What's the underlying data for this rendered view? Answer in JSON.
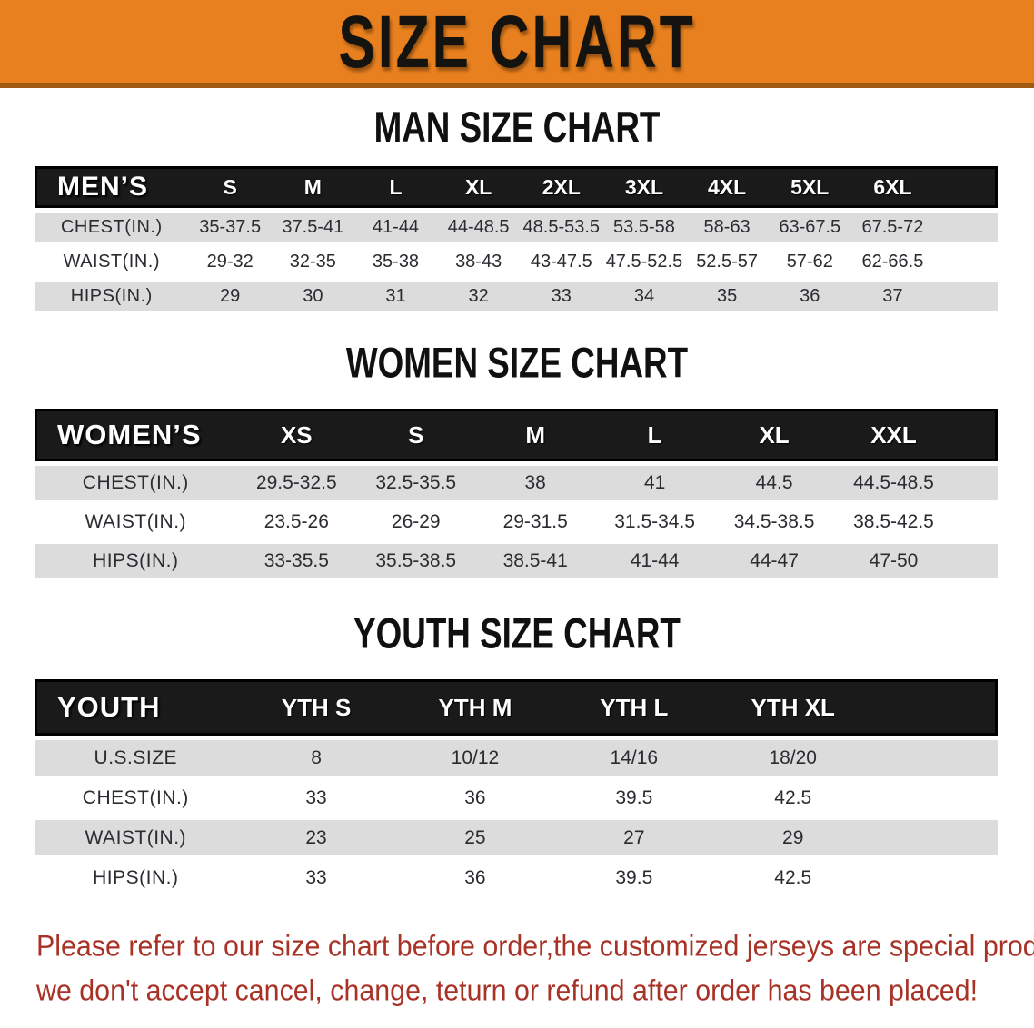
{
  "banner": {
    "title": "SIZE CHART"
  },
  "sections": [
    {
      "heading": "MAN SIZE CHART",
      "table": {
        "header_label": "MEN’S",
        "columns": [
          "S",
          "M",
          "L",
          "XL",
          "2XL",
          "3XL",
          "4XL",
          "5XL",
          "6XL"
        ],
        "rows": [
          {
            "label": "CHEST(IN.)",
            "values": [
              "35-37.5",
              "37.5-41",
              "41-44",
              "44-48.5",
              "48.5-53.5",
              "53.5-58",
              "58-63",
              "63-67.5",
              "67.5-72"
            ]
          },
          {
            "label": "WAIST(IN.)",
            "values": [
              "29-32",
              "32-35",
              "35-38",
              "38-43",
              "43-47.5",
              "47.5-52.5",
              "52.5-57",
              "57-62",
              "62-66.5"
            ]
          },
          {
            "label": "HIPS(IN.)",
            "values": [
              "29",
              "30",
              "31",
              "32",
              "33",
              "34",
              "35",
              "36",
              "37"
            ]
          }
        ]
      }
    },
    {
      "heading": "WOMEN SIZE CHART",
      "table": {
        "header_label": "WOMEN’S",
        "columns": [
          "XS",
          "S",
          "M",
          "L",
          "XL",
          "XXL"
        ],
        "rows": [
          {
            "label": "CHEST(IN.)",
            "values": [
              "29.5-32.5",
              "32.5-35.5",
              "38",
              "41",
              "44.5",
              "44.5-48.5"
            ]
          },
          {
            "label": "WAIST(IN.)",
            "values": [
              "23.5-26",
              "26-29",
              "29-31.5",
              "31.5-34.5",
              "34.5-38.5",
              "38.5-42.5"
            ]
          },
          {
            "label": "HIPS(IN.)",
            "values": [
              "33-35.5",
              "35.5-38.5",
              "38.5-41",
              "41-44",
              "44-47",
              "47-50"
            ]
          }
        ]
      }
    },
    {
      "heading": "YOUTH SIZE CHART",
      "table": {
        "header_label": "YOUTH",
        "columns": [
          "YTH S",
          "YTH M",
          "YTH L",
          "YTH XL"
        ],
        "rows": [
          {
            "label": "U.S.SIZE",
            "values": [
              "8",
              "10/12",
              "14/16",
              "18/20"
            ]
          },
          {
            "label": "CHEST(IN.)",
            "values": [
              "33",
              "36",
              "39.5",
              "42.5"
            ]
          },
          {
            "label": "WAIST(IN.)",
            "values": [
              "23",
              "25",
              "27",
              "29"
            ]
          },
          {
            "label": "HIPS(IN.)",
            "values": [
              "33",
              "36",
              "39.5",
              "42.5"
            ]
          }
        ]
      }
    }
  ],
  "disclaimer": {
    "line1": "Please refer to our size chart before order,the customized jerseys are special products,",
    "line2": "we don't accept cancel, change, teturn or refund after order has been placed!"
  },
  "colors": {
    "banner_orange": "#E8801F",
    "banner_edge": "#9E5A10",
    "header_black": "#1B1A1A",
    "stripe_gray": "#DCDCDC",
    "disclaimer_red": "#A93226"
  }
}
